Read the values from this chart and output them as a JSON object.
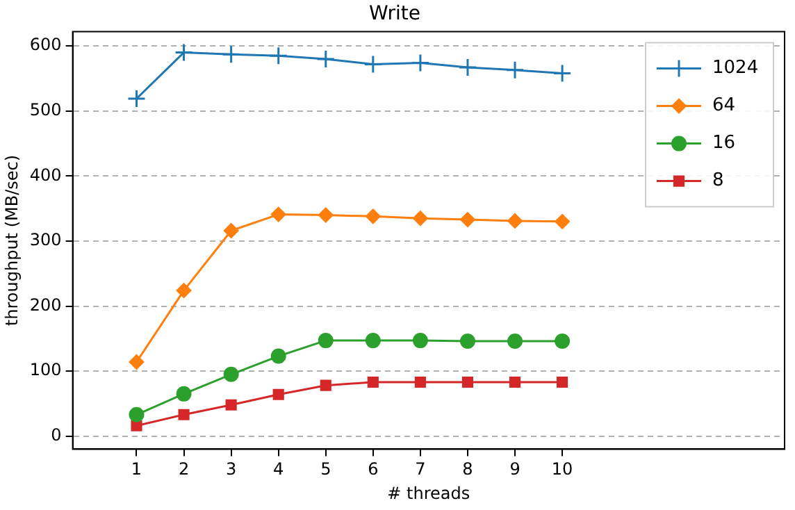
{
  "chart_data": {
    "type": "line",
    "title": "Write",
    "xlabel": "# threads",
    "ylabel": "throughput (MB/sec)",
    "x": [
      1,
      2,
      3,
      4,
      5,
      6,
      7,
      8,
      9,
      10
    ],
    "xlim": [
      -0.35,
      14.7
    ],
    "xticks": [
      1,
      2,
      3,
      4,
      5,
      6,
      7,
      8,
      9,
      10
    ],
    "ylim": [
      -20,
      622
    ],
    "yticks": [
      0,
      100,
      200,
      300,
      400,
      500,
      600
    ],
    "grid": "y",
    "legend": "top right",
    "line_style": "solid",
    "series": [
      {
        "name": "1024",
        "color": "#1f77b4",
        "marker": "cross",
        "values": [
          519,
          590,
          587,
          585,
          580,
          572,
          574,
          567,
          563,
          558
        ]
      },
      {
        "name": "64",
        "color": "#ff7f0e",
        "marker": "diamond",
        "values": [
          114,
          224,
          316,
          341,
          340,
          338,
          335,
          333,
          331,
          330
        ]
      },
      {
        "name": "16",
        "color": "#2ca02c",
        "marker": "circle",
        "values": [
          33,
          65,
          95,
          123,
          147,
          147,
          147,
          146,
          146,
          146
        ]
      },
      {
        "name": "8",
        "color": "#d62728",
        "marker": "square",
        "values": [
          16,
          33,
          48,
          64,
          78,
          83,
          83,
          83,
          83,
          83
        ]
      }
    ]
  }
}
